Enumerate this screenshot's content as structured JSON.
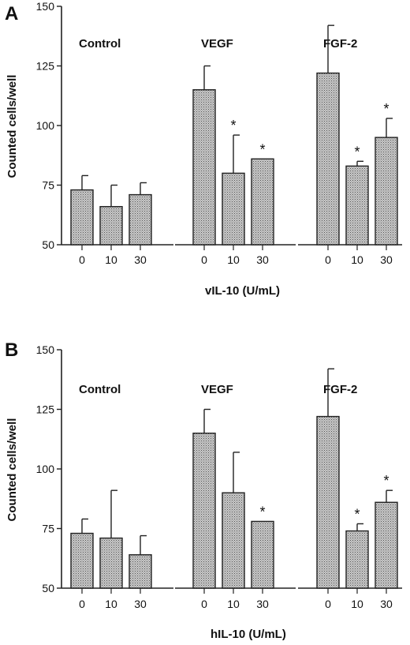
{
  "chart_data": [
    {
      "panel": "A",
      "type": "bar",
      "groups": [
        "Control",
        "VEGF",
        "FGF-2"
      ],
      "categories": [
        "0",
        "10",
        "30"
      ],
      "series": [
        {
          "group": "Control",
          "values": [
            73,
            66,
            71
          ],
          "errors": [
            6,
            9,
            5
          ],
          "significant": [
            false,
            false,
            false
          ]
        },
        {
          "group": "VEGF",
          "values": [
            115,
            80,
            86
          ],
          "errors": [
            10,
            16,
            0
          ],
          "significant": [
            false,
            true,
            true
          ]
        },
        {
          "group": "FGF-2",
          "values": [
            122,
            83,
            95
          ],
          "errors": [
            20,
            2,
            8
          ],
          "significant": [
            false,
            true,
            true
          ]
        }
      ],
      "xlabel": "vIL-10  (U/mL)",
      "ylabel": "Counted  cells/well",
      "ylim": [
        50,
        150
      ],
      "yticks": [
        "50",
        "75",
        "100",
        "125",
        "150"
      ],
      "significance_marker": "*"
    },
    {
      "panel": "B",
      "type": "bar",
      "groups": [
        "Control",
        "VEGF",
        "FGF-2"
      ],
      "categories": [
        "0",
        "10",
        "30"
      ],
      "series": [
        {
          "group": "Control",
          "values": [
            73,
            71,
            64
          ],
          "errors": [
            6,
            20,
            8
          ],
          "significant": [
            false,
            false,
            false
          ]
        },
        {
          "group": "VEGF",
          "values": [
            115,
            90,
            78
          ],
          "errors": [
            10,
            17,
            0
          ],
          "significant": [
            false,
            false,
            true
          ]
        },
        {
          "group": "FGF-2",
          "values": [
            122,
            74,
            86
          ],
          "errors": [
            20,
            3,
            5
          ],
          "significant": [
            false,
            true,
            true
          ]
        }
      ],
      "xlabel": "hIL-10  (U/mL)",
      "ylabel": "Counted  cells/well",
      "ylim": [
        50,
        150
      ],
      "yticks": [
        "50",
        "75",
        "100",
        "125",
        "150"
      ],
      "significance_marker": "*"
    }
  ],
  "colors": {
    "bar_fill": "#bdbdbd",
    "bar_stroke": "#222222",
    "axis": "#222222"
  }
}
